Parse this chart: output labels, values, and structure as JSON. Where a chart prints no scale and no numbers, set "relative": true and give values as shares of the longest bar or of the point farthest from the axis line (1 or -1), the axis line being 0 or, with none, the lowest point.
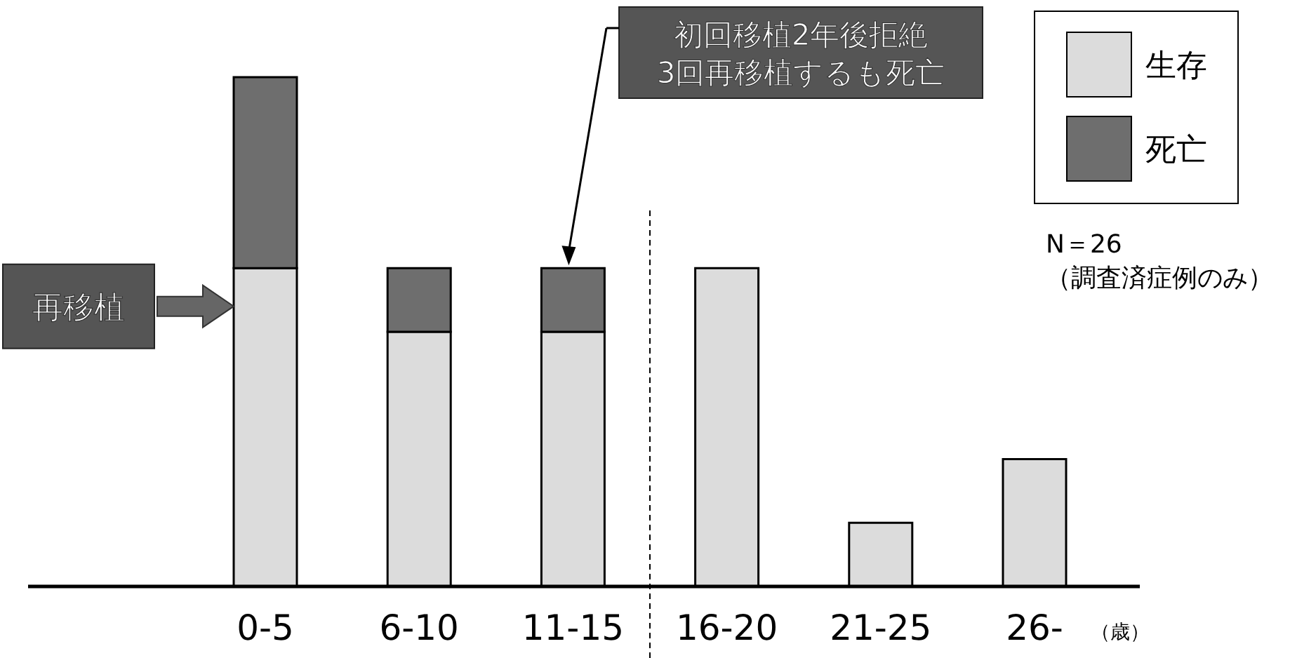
{
  "chart_data": {
    "type": "bar",
    "stacked": true,
    "relative": true,
    "categories": [
      "0-5",
      "6-10",
      "11-15",
      "16-20",
      "21-25",
      "26-"
    ],
    "xlabel": "（歳）",
    "series": [
      {
        "name": "生存",
        "color": "#dcdcdc",
        "values": [
          0.625,
          0.5,
          0.5,
          0.625,
          0.125,
          0.25
        ]
      },
      {
        "name": "死亡",
        "color": "#6e6e6e",
        "values": [
          0.375,
          0.125,
          0.125,
          0,
          0,
          0
        ]
      }
    ],
    "legend": "top right",
    "annotations": [
      "再移植",
      "初回移植2年後拒絶\n3回再移植するも死亡",
      "N＝26",
      "（調査済症例のみ）"
    ]
  }
}
